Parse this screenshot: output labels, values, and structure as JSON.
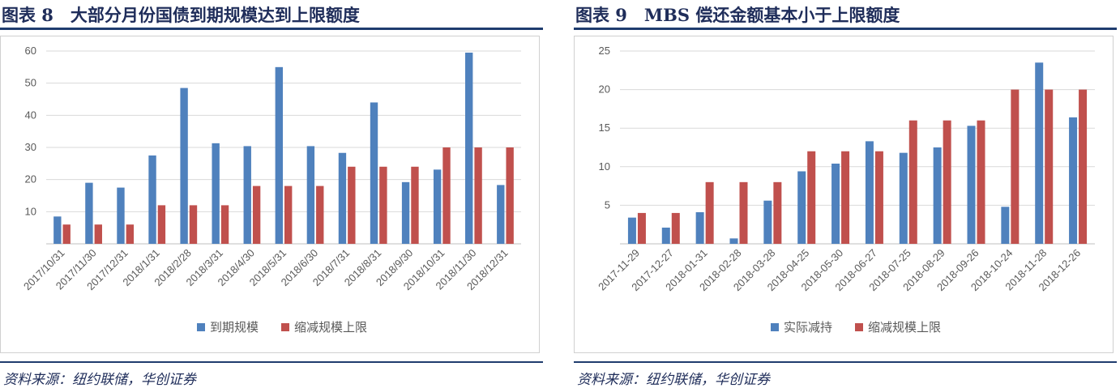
{
  "figures": [
    {
      "title": "图表 8　大部分月份国债到期规模达到上限额度",
      "source": "资料来源：纽约联储，华创证券",
      "chart_data": {
        "type": "bar",
        "title": "",
        "xlabel": "",
        "ylabel": "",
        "ylim": [
          0,
          60
        ],
        "yticks": [
          10,
          20,
          30,
          40,
          50,
          60
        ],
        "grid": true,
        "legend_position": "bottom",
        "categories": [
          "2017/10/31",
          "2017/11/30",
          "2017/12/31",
          "2018/1/31",
          "2018/2/28",
          "2018/3/31",
          "2018/4/30",
          "2018/5/31",
          "2018/6/30",
          "2018/7/31",
          "2018/8/31",
          "2018/9/30",
          "2018/10/31",
          "2018/11/30",
          "2018/12/31"
        ],
        "series": [
          {
            "name": "到期规模",
            "color": "#4f81bd",
            "values": [
              8.5,
              19,
              17.5,
              27.5,
              48.5,
              31.3,
              30.4,
              55,
              30.4,
              28.3,
              44,
              19.2,
              23.1,
              59.5,
              18.3
            ]
          },
          {
            "name": "缩减规模上限",
            "color": "#c0504d",
            "values": [
              6,
              6,
              6,
              12,
              12,
              12,
              18,
              18,
              18,
              24,
              24,
              24,
              30,
              30,
              30
            ]
          }
        ]
      }
    },
    {
      "title": "图表 9　MBS 偿还金额基本小于上限额度",
      "source": "资料来源：纽约联储，华创证券",
      "chart_data": {
        "type": "bar",
        "title": "",
        "xlabel": "",
        "ylabel": "",
        "ylim": [
          0,
          25
        ],
        "yticks": [
          5,
          10,
          15,
          20,
          25
        ],
        "grid": true,
        "legend_position": "bottom",
        "categories": [
          "2017-11-29",
          "2017-12-27",
          "2018-01-31",
          "2018-02-28",
          "2018-03-28",
          "2018-04-25",
          "2018-05-30",
          "2018-06-27",
          "2018-07-25",
          "2018-08-29",
          "2018-09-26",
          "2018-10-24",
          "2018-11-28",
          "2018-12-26"
        ],
        "series": [
          {
            "name": "实际减持",
            "color": "#4f81bd",
            "values": [
              3.4,
              2.1,
              4.1,
              0.7,
              5.6,
              9.4,
              10.4,
              13.3,
              11.8,
              12.5,
              15.3,
              4.8,
              23.5,
              16.4
            ]
          },
          {
            "name": "缩减规模上限",
            "color": "#c0504d",
            "values": [
              4,
              4,
              8,
              8,
              8,
              12,
              12,
              12,
              16,
              16,
              16,
              20,
              20,
              20
            ]
          }
        ]
      }
    }
  ]
}
